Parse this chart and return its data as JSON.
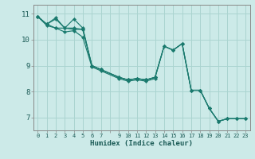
{
  "xlabel": "Humidex (Indice chaleur)",
  "bg_color": "#cceae8",
  "grid_color": "#aad4d0",
  "line_color": "#1a7a6e",
  "xlim": [
    -0.5,
    23.5
  ],
  "ylim": [
    6.5,
    11.35
  ],
  "xtick_positions": [
    0,
    1,
    2,
    3,
    4,
    5,
    6,
    7,
    9,
    10,
    11,
    12,
    13,
    14,
    15,
    16,
    17,
    18,
    19,
    20,
    21,
    22,
    23
  ],
  "yticks": [
    7,
    8,
    9,
    10,
    11
  ],
  "series": [
    [
      10.9,
      10.6,
      10.8,
      10.45,
      10.45,
      10.4,
      9.0,
      8.85,
      null,
      8.55,
      8.45,
      8.5,
      8.45,
      8.55,
      9.75,
      9.6,
      9.85,
      8.05,
      8.05,
      7.35,
      6.85,
      6.95,
      6.95,
      6.95
    ],
    [
      10.9,
      10.6,
      10.85,
      10.45,
      10.8,
      10.45,
      9.0,
      8.85,
      null,
      8.55,
      8.45,
      8.5,
      8.45,
      8.55,
      9.75,
      9.6,
      9.85,
      8.05,
      8.05,
      7.35,
      6.85,
      6.95,
      6.95,
      6.95
    ],
    [
      10.9,
      10.6,
      10.45,
      10.45,
      10.4,
      10.4,
      9.0,
      8.85,
      null,
      8.55,
      8.45,
      8.5,
      8.45,
      8.55,
      9.75,
      9.6,
      9.85,
      8.05,
      8.05,
      7.35,
      6.85,
      6.95,
      6.95,
      6.95
    ],
    [
      10.9,
      10.55,
      10.45,
      10.3,
      10.35,
      10.1,
      8.95,
      8.8,
      null,
      8.5,
      8.4,
      8.45,
      8.4,
      8.5,
      null,
      null,
      null,
      null,
      null,
      null,
      null,
      null,
      null,
      null
    ]
  ]
}
